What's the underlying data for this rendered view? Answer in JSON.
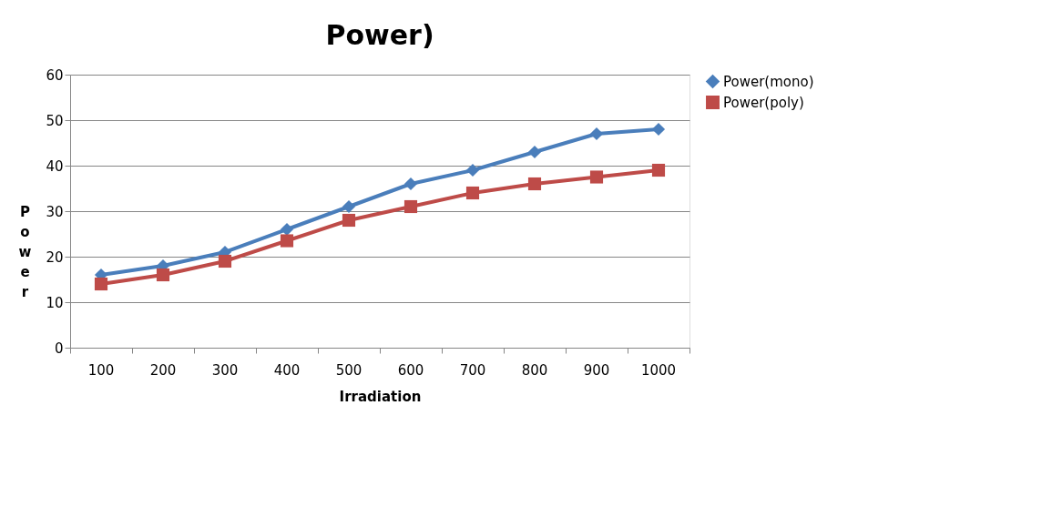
{
  "chart_data": {
    "type": "line",
    "title": "Power)",
    "xlabel": "Irradiation",
    "ylabel": "Power",
    "categories": [
      "100",
      "200",
      "300",
      "400",
      "500",
      "600",
      "700",
      "800",
      "900",
      "1000"
    ],
    "series": [
      {
        "name": "Power(mono)",
        "color": "#4a7ebb",
        "marker": "diamond",
        "values": [
          16,
          18,
          21,
          26,
          31,
          36,
          39,
          43,
          47,
          48
        ]
      },
      {
        "name": "Power(poly)",
        "color": "#be4b48",
        "marker": "square",
        "values": [
          14,
          16,
          19,
          23.5,
          28,
          31,
          34,
          36,
          37.5,
          39
        ]
      }
    ],
    "ylim": [
      0,
      60
    ],
    "yticks": [
      0,
      10,
      20,
      30,
      40,
      50,
      60
    ],
    "grid": "y",
    "legend": "right",
    "line_style": "solid"
  }
}
